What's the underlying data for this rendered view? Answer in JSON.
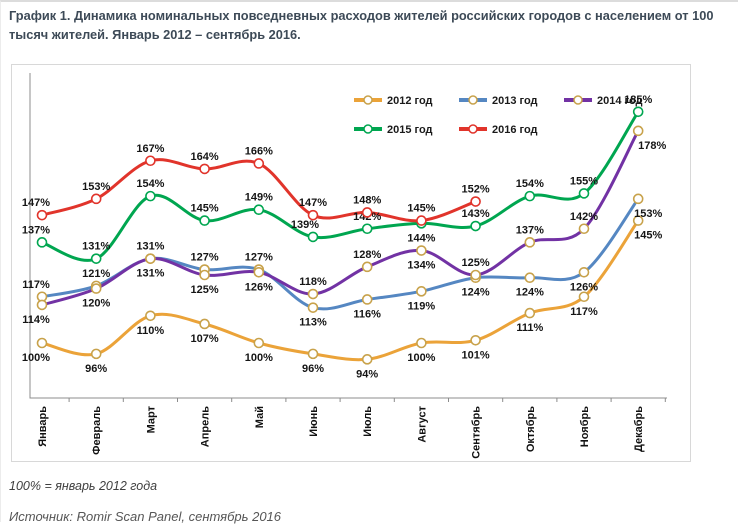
{
  "page": {
    "title": "График 1. Динамика номинальных повседневных расходов жителей российских городов с населением от 100 тысяч жителей. Январь 2012 – сентябрь 2016.",
    "footnote": "100% = январь 2012 года",
    "source": "Источник: Romir Scan Panel, сентябрь 2016"
  },
  "chart_data": {
    "type": "line",
    "title": "Динамика номинальных повседневных расходов, % к январю 2012",
    "unit": "%",
    "categories": [
      "Январь",
      "Февраль",
      "Март",
      "Апрель",
      "Май",
      "Июнь",
      "Июль",
      "Август",
      "Сентябрь",
      "Октябрь",
      "Ноябрь",
      "Декабрь"
    ],
    "ylim": [
      85,
      200
    ],
    "grid": false,
    "legend_position": "top-center-two-rows",
    "baseline_note": "100% = январь 2012 года",
    "series": [
      {
        "name": "2012 год",
        "color": "#EBA339",
        "marker_stroke": "#C8A24B",
        "values": [
          100,
          96,
          110,
          107,
          100,
          96,
          94,
          100,
          101,
          111,
          117,
          145
        ],
        "label_side": "bbbbbbbbbbbb",
        "label_dx": {
          "0": -6,
          "11": 10
        }
      },
      {
        "name": "2013 год",
        "color": "#5587C2",
        "marker_stroke": "#C8A24B",
        "values": [
          117,
          121,
          131,
          127,
          127,
          113,
          116,
          119,
          124,
          124,
          126,
          153
        ],
        "label_side": "aaaaabbbbbbb",
        "label_dx": {
          "0": -6,
          "11": 10
        }
      },
      {
        "name": "2014 год",
        "color": "#7232A4",
        "marker_stroke": "#C8A24B",
        "values": [
          114,
          120,
          131,
          125,
          126,
          118,
          128,
          134,
          125,
          137,
          142,
          178
        ],
        "label_side": "bbbbbaabaaab",
        "label_dx": {
          "0": -6,
          "11": 14
        }
      },
      {
        "name": "2015 год",
        "color": "#00A650",
        "marker_stroke": "#00A650",
        "values": [
          137,
          131,
          154,
          145,
          149,
          139,
          142,
          144,
          143,
          154,
          155,
          185
        ],
        "label_side": "aaaaaaabaaaa",
        "label_dx": {
          "0": -6,
          "5": -8
        }
      },
      {
        "name": "2016 год",
        "color": "#E1342B",
        "marker_stroke": "#E1342B",
        "values": [
          147,
          153,
          167,
          164,
          166,
          147,
          148,
          145,
          152
        ],
        "label_side": "aaaaaaaaa",
        "label_dx": {
          "0": -6
        }
      }
    ]
  }
}
